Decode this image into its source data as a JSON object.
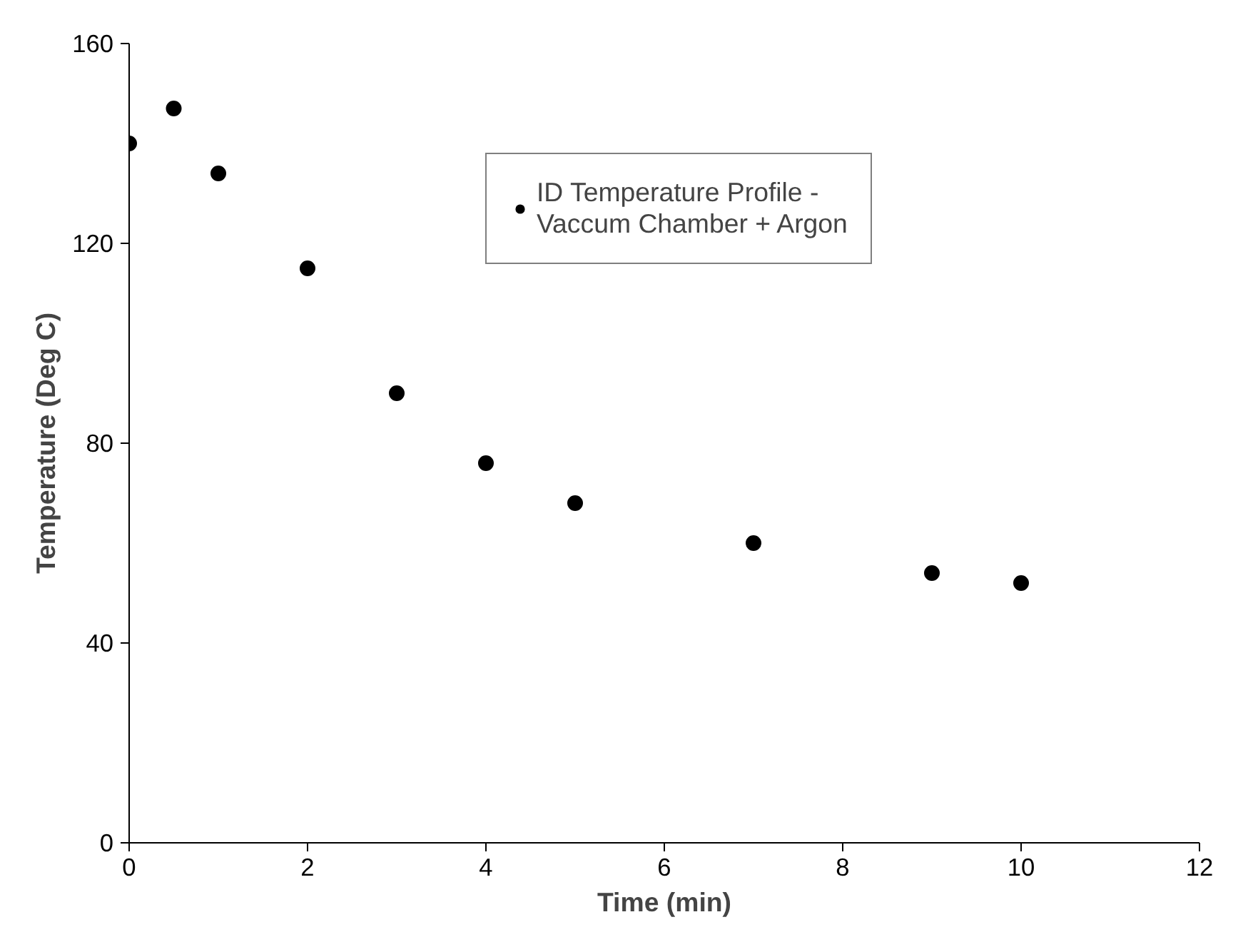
{
  "chart_data": {
    "type": "scatter",
    "xlabel": "Time (min)",
    "ylabel": "Temperature (Deg C)",
    "x": [
      0,
      0.5,
      1,
      2,
      3,
      4,
      5,
      7,
      9,
      10
    ],
    "series": [
      {
        "name": "ID Temperature Profile -\nVaccum Chamber + Argon",
        "color": "#000000",
        "values": [
          140,
          147,
          134,
          115,
          90,
          76,
          68,
          60,
          54,
          52
        ]
      }
    ],
    "xlim": [
      0,
      12
    ],
    "xticks": [
      0,
      2,
      4,
      6,
      8,
      10,
      12
    ],
    "ylim": [
      0,
      160
    ],
    "yticks": [
      0,
      40,
      80,
      120,
      160
    ],
    "grid": false,
    "legend": "top right",
    "marker": "circle"
  }
}
